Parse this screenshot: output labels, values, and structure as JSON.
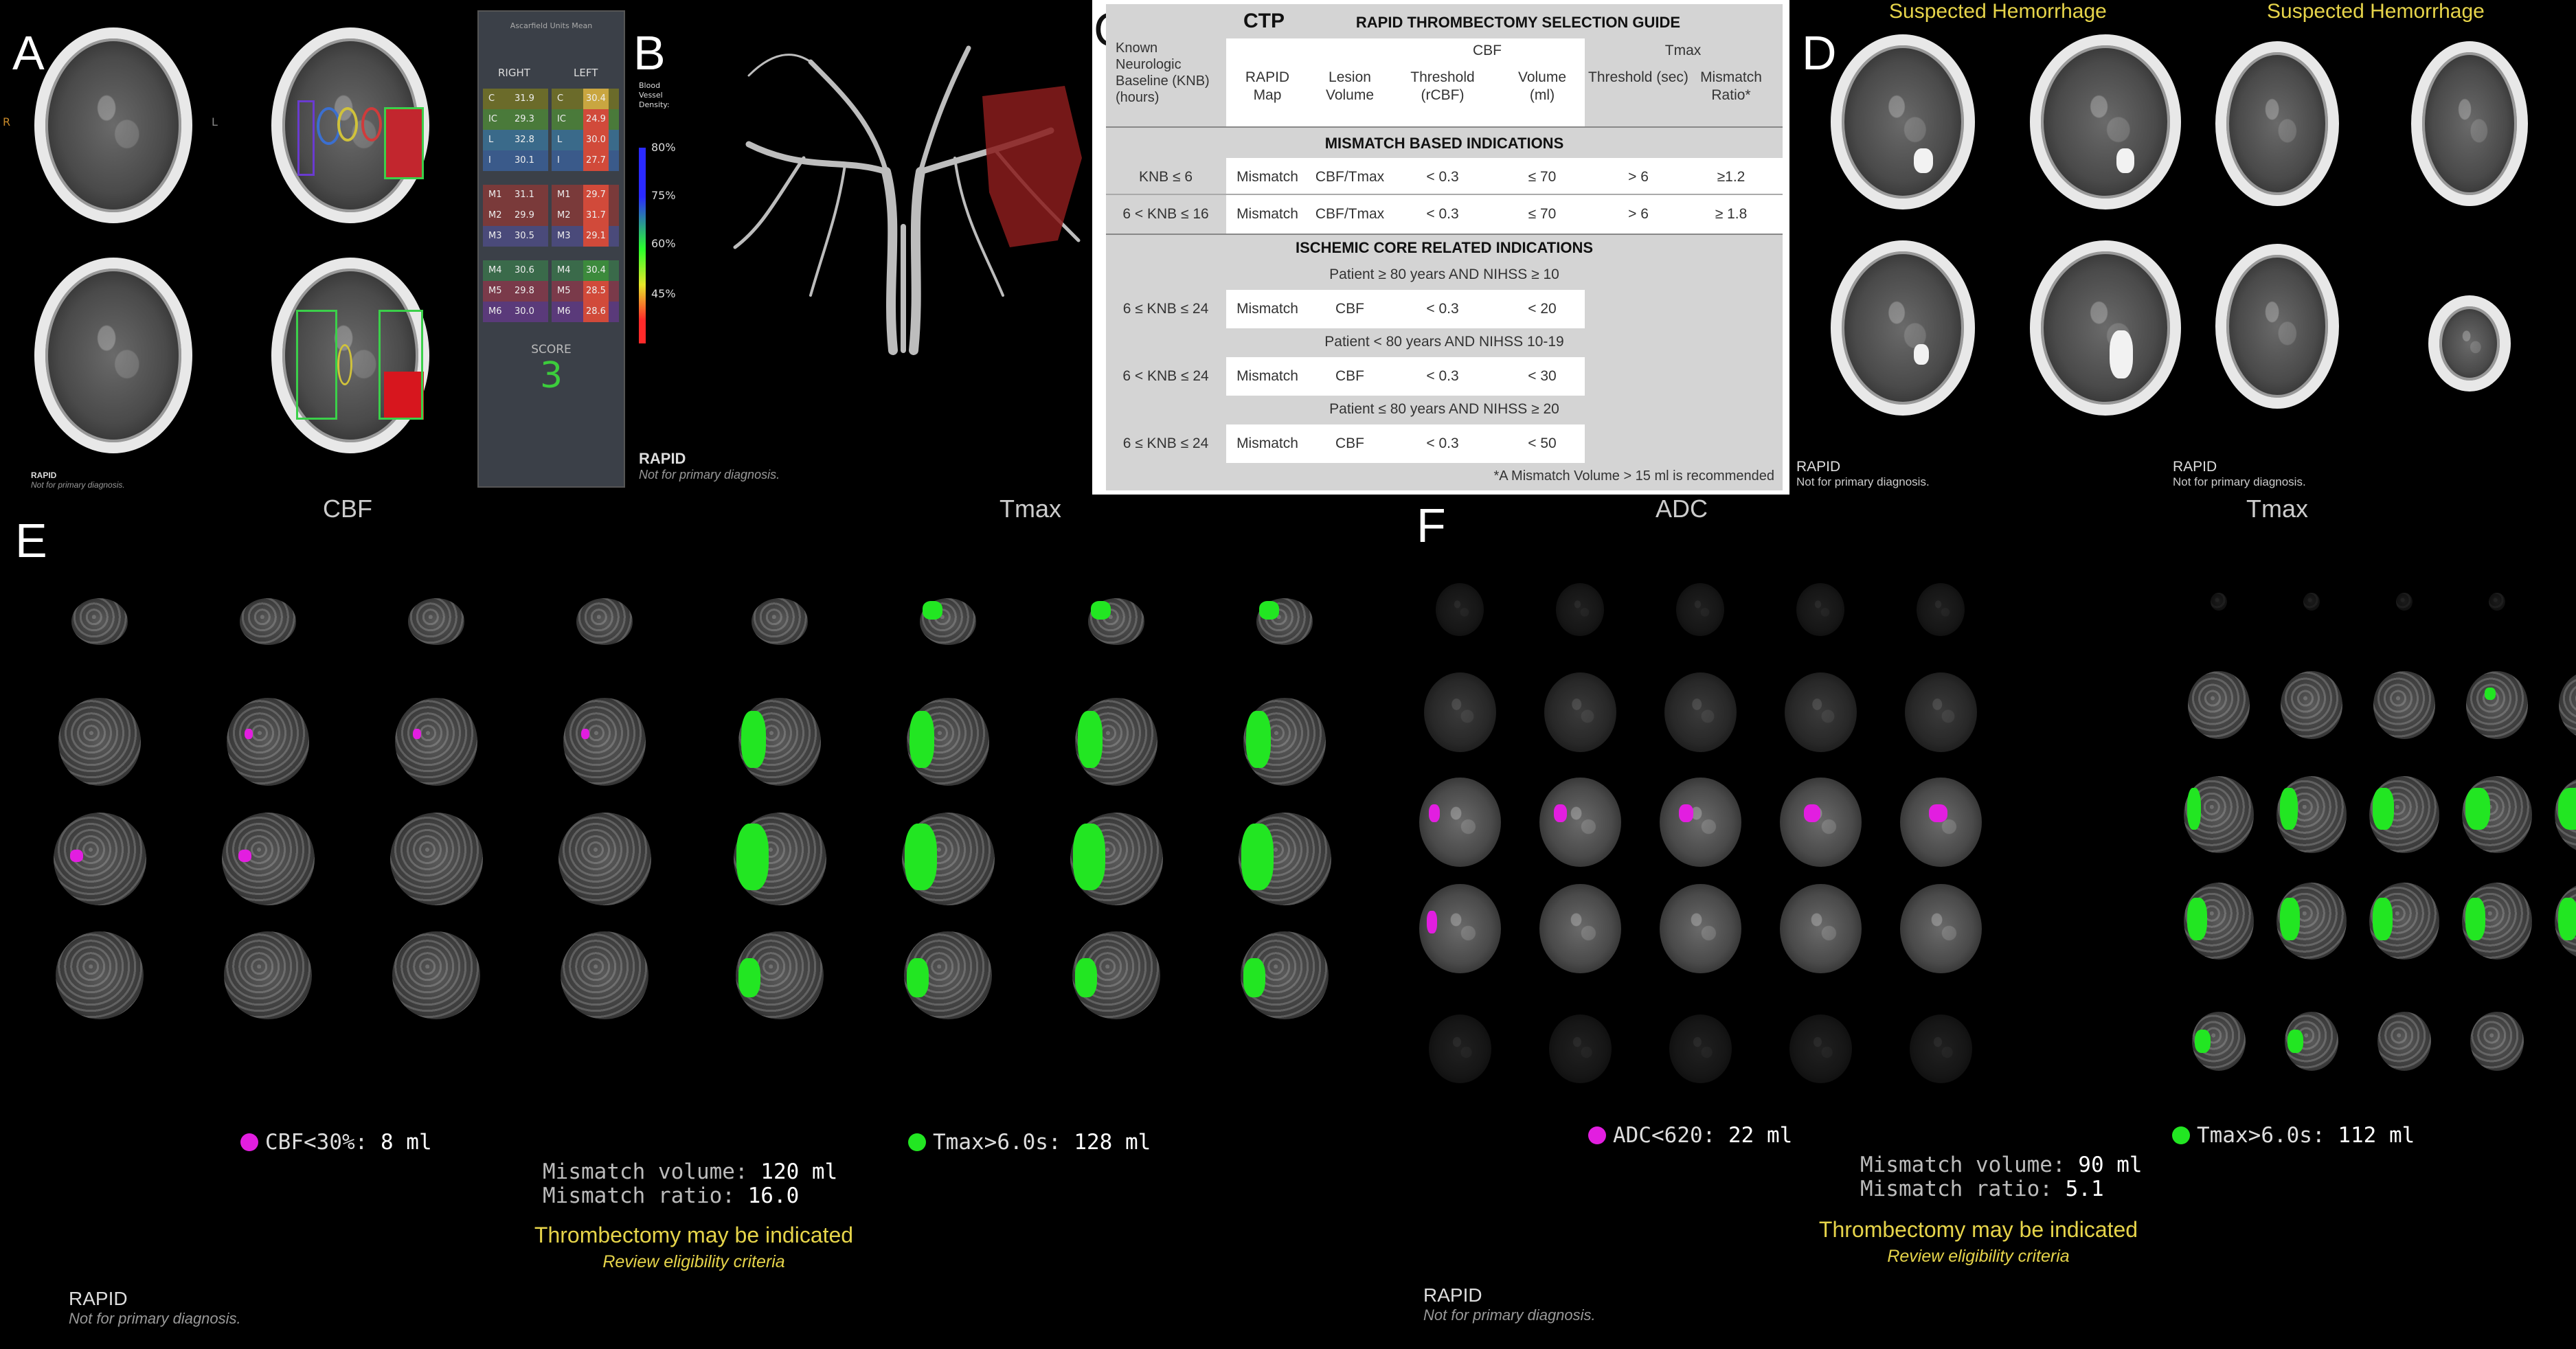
{
  "panels": {
    "a": "A",
    "b": "B",
    "c": "C",
    "d": "D",
    "e": "E",
    "f": "F"
  },
  "panel_a": {
    "orientation_r": "R",
    "orientation_l": "L",
    "table_header": "Ascarfield Units Mean",
    "col_right": "RIGHT",
    "col_left": "LEFT",
    "rows": [
      {
        "region": "C",
        "right": "31.9",
        "left": "30.4",
        "left_color": "#c9a640"
      },
      {
        "region": "IC",
        "right": "29.3",
        "left": "24.9",
        "left_color": "#d14a3a"
      },
      {
        "region": "L",
        "right": "32.8",
        "left": "30.0",
        "left_color": "#d14a3a"
      },
      {
        "region": "I",
        "right": "30.1",
        "left": "27.7",
        "left_color": "#d14a3a"
      },
      {
        "region": "M1",
        "right": "31.1",
        "left": "29.7",
        "left_color": "#d14a3a"
      },
      {
        "region": "M2",
        "right": "29.9",
        "left": "31.7",
        "left_color": "#d14a3a"
      },
      {
        "region": "M3",
        "right": "30.5",
        "left": "29.1",
        "left_color": "#d14a3a"
      },
      {
        "region": "M4",
        "right": "30.6",
        "left": "30.4",
        "left_color": "#3c8a3c"
      },
      {
        "region": "M5",
        "right": "29.8",
        "left": "28.5",
        "left_color": "#d14a3a"
      },
      {
        "region": "M6",
        "right": "30.0",
        "left": "28.6",
        "left_color": "#d14a3a"
      }
    ],
    "score_label": "SCORE",
    "score_value": "3",
    "rapid": "RAPID",
    "rapid_sub": "Not for primary diagnosis."
  },
  "panel_b": {
    "legend_title": "Blood Vessel Density:",
    "ticks": [
      "80%",
      "75%",
      "60%",
      "45%"
    ],
    "rapid": "RAPID",
    "rapid_sub": "Not for primary diagnosis."
  },
  "panel_c": {
    "ctp": "CTP",
    "guide_title": "RAPID THROMBECTOMY SELECTION GUIDE",
    "knb_header": "Known Neurologic Baseline (KNB) (hours)",
    "h_map": "RAPID Map",
    "h_lesion": "Lesion Volume",
    "h_cbf": "CBF",
    "h_tmax": "Tmax",
    "h_thresh_rcbf": "Threshold (rCBF)",
    "h_volume": "Volume (ml)",
    "h_thresh_sec": "Threshold (sec)",
    "h_ratio": "Mismatch Ratio*",
    "mismatch_title": "MISMATCH BASED INDICATIONS",
    "mismatch_rows": [
      {
        "knb": "KNB ≤ 6",
        "map": "Mismatch",
        "lesion": "CBF/Tmax",
        "thr": "< 0.3",
        "vol": "≤ 70",
        "tthr": "> 6",
        "ratio": "≥1.2"
      },
      {
        "knb": "6 < KNB ≤ 16",
        "map": "Mismatch",
        "lesion": "CBF/Tmax",
        "thr": "< 0.3",
        "vol": "≤ 70",
        "tthr": "> 6",
        "ratio": "≥ 1.8"
      }
    ],
    "core_title": "ISCHEMIC CORE RELATED INDICATIONS",
    "core_groups": [
      {
        "cond": "Patient ≥ 80 years AND NIHSS  ≥ 10",
        "knb": "6 ≤ KNB ≤ 24",
        "map": "Mismatch",
        "lesion": "CBF",
        "thr": "< 0.3",
        "vol": "< 20"
      },
      {
        "cond": "Patient < 80 years AND NIHSS 10-19",
        "knb": "6 < KNB ≤ 24",
        "map": "Mismatch",
        "lesion": "CBF",
        "thr": "< 0.3",
        "vol": "< 30"
      },
      {
        "cond": "Patient ≤ 80 years AND NIHSS  ≥ 20",
        "knb": "6 ≤ KNB ≤ 24",
        "map": "Mismatch",
        "lesion": "CBF",
        "thr": "< 0.3",
        "vol": "< 50"
      }
    ],
    "footnote": "*A Mismatch Volume > 15 ml is recommended"
  },
  "panel_d": {
    "hem1": "Suspected Hemorrhage",
    "hem2": "Suspected Hemorrhage",
    "rapid1": "RAPID",
    "rapid1_sub": "Not for primary diagnosis.",
    "rapid2": "RAPID",
    "rapid2_sub": "Not for primary diagnosis."
  },
  "panel_e": {
    "cbf_title": "CBF",
    "tmax_title": "Tmax",
    "cbf_legend_label": "CBF<30%: ",
    "cbf_legend_value": "8 ml",
    "tmax_legend_label": "Tmax>6.0s: ",
    "tmax_legend_value": "128 ml",
    "mm_vol_label": "Mismatch volume: ",
    "mm_vol_value": "120 ml",
    "mm_ratio_label": "Mismatch ratio: ",
    "mm_ratio_value": "16.0",
    "thromb": "Thrombectomy may be indicated",
    "review": "Review eligibility criteria",
    "rapid": "RAPID",
    "rapid_sub": "Not for primary diagnosis."
  },
  "panel_f": {
    "adc_title": "ADC",
    "tmax_title": "Tmax",
    "adc_legend_label": "ADC<620: ",
    "adc_legend_value": "22 ml",
    "tmax_legend_label": "Tmax>6.0s: ",
    "tmax_legend_value": "112 ml",
    "mm_vol_label": "Mismatch volume: ",
    "mm_vol_value": "90 ml",
    "mm_ratio_label": "Mismatch ratio: ",
    "mm_ratio_value": "5.1",
    "thromb": "Thrombectomy may be indicated",
    "review": "Review eligibility criteria",
    "rapid": "RAPID",
    "rapid_sub": "Not for primary diagnosis."
  },
  "colors": {
    "core": "#e21ee0",
    "tmax": "#22e622",
    "highlight": "#e6d44a"
  }
}
